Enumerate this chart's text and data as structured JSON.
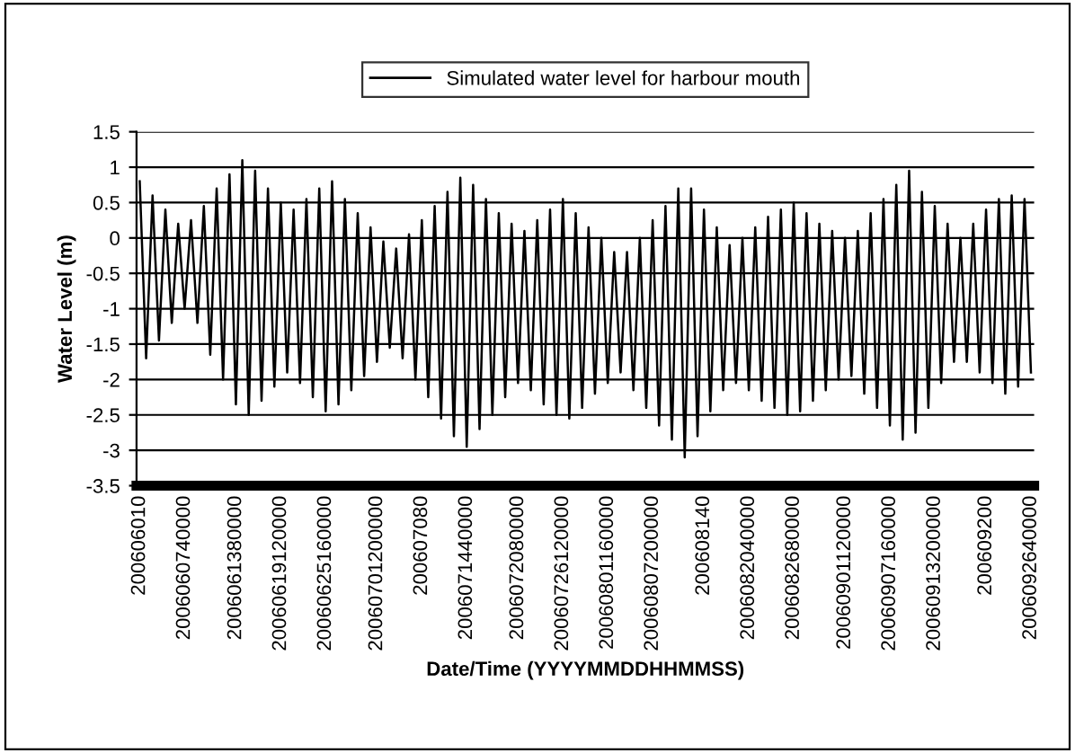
{
  "chart_data": {
    "type": "line",
    "xlabel": "Date/Time (YYYYMMDDHHMMSS)",
    "ylabel": "Water Level (m)",
    "legend": "top",
    "grid": "y",
    "marker": "none",
    "line_style": "solid",
    "ylim": [
      -3.5,
      1.5
    ],
    "yticks": [
      -3.5,
      -3,
      -2.5,
      -2,
      -1.5,
      -1,
      -0.5,
      0,
      0.5,
      1,
      1.5
    ],
    "categories": [
      "200606010",
      null,
      null,
      null,
      null,
      null,
      null,
      "2006060740000",
      null,
      null,
      null,
      null,
      null,
      null,
      null,
      "2006061380000",
      null,
      null,
      null,
      null,
      null,
      null,
      "20060619120000",
      null,
      null,
      null,
      null,
      null,
      null,
      "20060625160000",
      null,
      null,
      null,
      null,
      null,
      null,
      null,
      "20060701200000",
      null,
      null,
      null,
      null,
      null,
      null,
      "200607080",
      null,
      null,
      null,
      null,
      null,
      null,
      "2006071440000",
      null,
      null,
      null,
      null,
      null,
      null,
      null,
      "2006072080000",
      null,
      null,
      null,
      null,
      null,
      null,
      "20060726120000",
      null,
      null,
      null,
      null,
      null,
      null,
      "20060801160000",
      null,
      null,
      null,
      null,
      null,
      null,
      "20060807200000",
      null,
      null,
      null,
      null,
      null,
      null,
      null,
      "200608140",
      null,
      null,
      null,
      null,
      null,
      null,
      "2006082040000",
      null,
      null,
      null,
      null,
      null,
      null,
      "2006082680000",
      null,
      null,
      null,
      null,
      null,
      null,
      null,
      "20060901120000",
      null,
      null,
      null,
      null,
      null,
      null,
      "20060907160000",
      null,
      null,
      null,
      null,
      null,
      null,
      "20060913200000",
      null,
      null,
      null,
      null,
      null,
      null,
      null,
      "200609200",
      null,
      null,
      null,
      null,
      null,
      null,
      "2006092640000"
    ],
    "series": [
      {
        "name": "Simulated water level for harbour mouth",
        "color": "#000000",
        "values": [
          0.8,
          -1.7,
          0.6,
          -1.45,
          0.4,
          -1.2,
          0.2,
          -1.0,
          0.25,
          -1.2,
          0.45,
          -1.65,
          0.7,
          -2.0,
          0.9,
          -2.35,
          1.1,
          -2.5,
          0.95,
          -2.3,
          0.7,
          -2.1,
          0.5,
          -1.9,
          0.4,
          -2.05,
          0.55,
          -2.25,
          0.7,
          -2.45,
          0.8,
          -2.35,
          0.55,
          -2.15,
          0.35,
          -1.95,
          0.15,
          -1.75,
          -0.05,
          -1.55,
          -0.15,
          -1.7,
          0.05,
          -2.0,
          0.25,
          -2.25,
          0.45,
          -2.55,
          0.65,
          -2.8,
          0.85,
          -2.95,
          0.75,
          -2.7,
          0.55,
          -2.5,
          0.35,
          -2.25,
          0.2,
          -2.05,
          0.1,
          -2.15,
          0.25,
          -2.35,
          0.4,
          -2.5,
          0.55,
          -2.55,
          0.35,
          -2.4,
          0.15,
          -2.2,
          0.0,
          -2.05,
          -0.2,
          -1.9,
          -0.2,
          -2.15,
          0.0,
          -2.4,
          0.25,
          -2.65,
          0.45,
          -2.85,
          0.7,
          -3.1,
          0.7,
          -2.8,
          0.4,
          -2.45,
          0.15,
          -2.15,
          -0.1,
          -2.05,
          0.0,
          -2.15,
          0.15,
          -2.3,
          0.3,
          -2.4,
          0.4,
          -2.5,
          0.5,
          -2.45,
          0.35,
          -2.3,
          0.2,
          -2.15,
          0.1,
          -2.0,
          0.0,
          -1.95,
          0.1,
          -2.2,
          0.35,
          -2.4,
          0.55,
          -2.65,
          0.75,
          -2.85,
          0.95,
          -2.75,
          0.65,
          -2.4,
          0.45,
          -2.05,
          0.2,
          -1.75,
          0.0,
          -1.75,
          0.2,
          -1.9,
          0.4,
          -2.05,
          0.55,
          -2.2,
          0.6,
          -2.1,
          0.55,
          -1.9
        ]
      }
    ]
  }
}
